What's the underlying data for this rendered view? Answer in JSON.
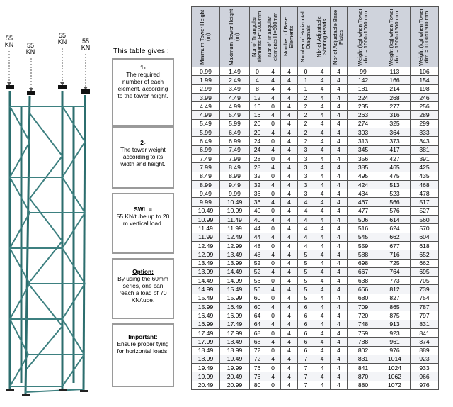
{
  "loads": [
    {
      "value": "55",
      "unit": "KN"
    },
    {
      "value": "55",
      "unit": "KN"
    },
    {
      "value": "55",
      "unit": "KN"
    },
    {
      "value": "55",
      "unit": "KN"
    }
  ],
  "intro": "This table gives :",
  "boxes": {
    "b1": {
      "num": "1-",
      "text": "The required number of each element, according to the tower height."
    },
    "b2": {
      "num": "2-",
      "text": "The tower weight according to its width and height."
    },
    "b3": {
      "title": "SWL =",
      "text": "55 KN/tube up to 20 m vertical load."
    },
    "b4": {
      "title": "Option:",
      "text": "By using the 60mm series, one can reach a load of 70 KN/tube."
    },
    "b5": {
      "title": "Important:",
      "text": "Ensure proper tying for horizontal loads!"
    }
  },
  "table": {
    "headers": [
      "Minimum Tower Height (m)",
      "Maximum Tower Height (m)",
      "Nbr of Triangular elements H=1000mm",
      "Nbr of Triangular elements H=500mm",
      "Number of Base Elements",
      "Number of Horizontal Diagonals",
      "Nbr of Adjustable Shoring Heads",
      "Nbr of Adjustable Base Plates",
      "Weight (kg) when Tower dim = 1000x1000 mm",
      "Weight (kg) when Tower dim = 1500x1500 mm",
      "Weight (kg) when Tower dim = 1000x1500 mm"
    ],
    "rows": [
      [
        "0.99",
        "1.49",
        "0",
        "4",
        "4",
        "0",
        "4",
        "4",
        "99",
        "113",
        "106"
      ],
      [
        "1.99",
        "2.49",
        "4",
        "4",
        "4",
        "1",
        "4",
        "4",
        "142",
        "166",
        "154"
      ],
      [
        "2.99",
        "3.49",
        "8",
        "4",
        "4",
        "1",
        "4",
        "4",
        "181",
        "214",
        "198"
      ],
      [
        "3.99",
        "4.49",
        "12",
        "4",
        "4",
        "2",
        "4",
        "4",
        "224",
        "268",
        "246"
      ],
      [
        "4.49",
        "4.99",
        "16",
        "0",
        "4",
        "2",
        "4",
        "4",
        "235",
        "277",
        "256"
      ],
      [
        "4.99",
        "5.49",
        "16",
        "4",
        "4",
        "2",
        "4",
        "4",
        "263",
        "316",
        "289"
      ],
      [
        "5.49",
        "5.99",
        "20",
        "0",
        "4",
        "2",
        "4",
        "4",
        "274",
        "325",
        "299"
      ],
      [
        "5.99",
        "6.49",
        "20",
        "4",
        "4",
        "2",
        "4",
        "4",
        "303",
        "364",
        "333"
      ],
      [
        "6.49",
        "6.99",
        "24",
        "0",
        "4",
        "2",
        "4",
        "4",
        "313",
        "373",
        "343"
      ],
      [
        "6.99",
        "7.49",
        "24",
        "4",
        "4",
        "3",
        "4",
        "4",
        "345",
        "417",
        "381"
      ],
      [
        "7.49",
        "7.99",
        "28",
        "0",
        "4",
        "3",
        "4",
        "4",
        "356",
        "427",
        "391"
      ],
      [
        "7.99",
        "8.49",
        "28",
        "4",
        "4",
        "3",
        "4",
        "4",
        "385",
        "465",
        "425"
      ],
      [
        "8.49",
        "8.99",
        "32",
        "0",
        "4",
        "3",
        "4",
        "4",
        "495",
        "475",
        "435"
      ],
      [
        "8.99",
        "9.49",
        "32",
        "4",
        "4",
        "3",
        "4",
        "4",
        "424",
        "513",
        "468"
      ],
      [
        "9.49",
        "9.99",
        "36",
        "0",
        "4",
        "3",
        "4",
        "4",
        "434",
        "523",
        "478"
      ],
      [
        "9.99",
        "10.49",
        "36",
        "4",
        "4",
        "4",
        "4",
        "4",
        "467",
        "566",
        "517"
      ],
      [
        "10.49",
        "10.99",
        "40",
        "0",
        "4",
        "4",
        "4",
        "4",
        "477",
        "576",
        "527"
      ],
      [
        "10.99",
        "11.49",
        "40",
        "4",
        "4",
        "4",
        "4",
        "4",
        "506",
        "614",
        "560"
      ],
      [
        "11.49",
        "11.99",
        "44",
        "0",
        "4",
        "4",
        "4",
        "4",
        "516",
        "624",
        "570"
      ],
      [
        "11.99",
        "12.49",
        "44",
        "4",
        "4",
        "4",
        "4",
        "4",
        "545",
        "662",
        "604"
      ],
      [
        "12.49",
        "12.99",
        "48",
        "0",
        "4",
        "4",
        "4",
        "4",
        "559",
        "677",
        "618"
      ],
      [
        "12.99",
        "13.49",
        "48",
        "4",
        "4",
        "5",
        "4",
        "4",
        "588",
        "716",
        "652"
      ],
      [
        "13.49",
        "13.99",
        "52",
        "0",
        "4",
        "5",
        "4",
        "4",
        "698",
        "725",
        "662"
      ],
      [
        "13.99",
        "14.49",
        "52",
        "4",
        "4",
        "5",
        "4",
        "4",
        "667",
        "764",
        "695"
      ],
      [
        "14.49",
        "14.99",
        "56",
        "0",
        "4",
        "5",
        "4",
        "4",
        "638",
        "773",
        "705"
      ],
      [
        "14.99",
        "15.49",
        "56",
        "4",
        "4",
        "5",
        "4",
        "4",
        "666",
        "812",
        "739"
      ],
      [
        "15.49",
        "15.99",
        "60",
        "0",
        "4",
        "5",
        "4",
        "4",
        "680",
        "827",
        "754"
      ],
      [
        "15.99",
        "16.49",
        "60",
        "4",
        "4",
        "6",
        "4",
        "4",
        "709",
        "865",
        "787"
      ],
      [
        "16.49",
        "16.99",
        "64",
        "0",
        "4",
        "6",
        "4",
        "4",
        "720",
        "875",
        "797"
      ],
      [
        "16.99",
        "17.49",
        "64",
        "4",
        "4",
        "6",
        "4",
        "4",
        "748",
        "913",
        "831"
      ],
      [
        "17.49",
        "17.99",
        "68",
        "0",
        "4",
        "6",
        "4",
        "4",
        "759",
        "923",
        "841"
      ],
      [
        "17.99",
        "18.49",
        "68",
        "4",
        "4",
        "6",
        "4",
        "4",
        "788",
        "961",
        "874"
      ],
      [
        "18.49",
        "18.99",
        "72",
        "0",
        "4",
        "6",
        "4",
        "4",
        "802",
        "976",
        "889"
      ],
      [
        "18.99",
        "19.49",
        "72",
        "4",
        "4",
        "7",
        "4",
        "4",
        "831",
        "1014",
        "923"
      ],
      [
        "19.49",
        "19.99",
        "76",
        "0",
        "4",
        "7",
        "4",
        "4",
        "841",
        "1024",
        "933"
      ],
      [
        "19.99",
        "20.49",
        "76",
        "4",
        "4",
        "7",
        "4",
        "4",
        "870",
        "1062",
        "966"
      ],
      [
        "20.49",
        "20.99",
        "80",
        "0",
        "4",
        "7",
        "4",
        "4",
        "880",
        "1072",
        "976"
      ]
    ]
  }
}
